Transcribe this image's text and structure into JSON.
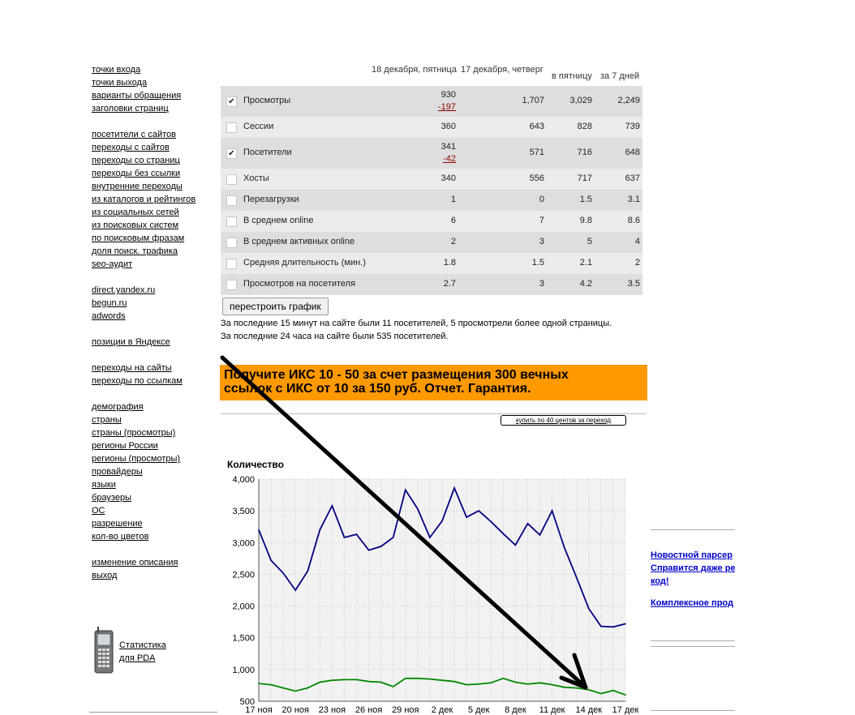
{
  "left_nav": {
    "groups": [
      [
        "точки входа",
        "точки выхода",
        "варианты обращения",
        "заголовки страниц"
      ],
      [
        "посетители с сайтов",
        "переходы с сайтов",
        "переходы со страниц",
        "переходы без ссылки",
        "внутренние переходы",
        "из каталогов и рейтингов",
        "из социальных сетей",
        "из поисковых систем",
        "по поисковым фразам",
        "доля поиск. трафика",
        "seo-аудит"
      ],
      [
        "direct.yandex.ru",
        "begun.ru",
        "adwords"
      ],
      [
        "позиции в Яндексе"
      ],
      [
        "переходы на сайты",
        "переходы по ссылкам"
      ],
      [
        "демография",
        "страны",
        "страны (просмотры)",
        "регионы России",
        "регионы (просмотры)",
        "провайдеры",
        "языки",
        "браузеры",
        "ОС",
        "разрешение",
        "кол-во цветов"
      ],
      [
        "изменение описания",
        "выход"
      ]
    ],
    "pda": {
      "line1": "Статистика",
      "line2": "для PDA"
    }
  },
  "stats_table": {
    "headers": {
      "col1": "18 декабря, пятница",
      "col2": "17 декабря, четверг",
      "col3": "в пятницу",
      "col4": "за 7 дней"
    },
    "rows": [
      {
        "label": "Просмотры",
        "checked": true,
        "v1": "930",
        "delta": "-197",
        "v2": "1,707",
        "v3": "3,029",
        "v4": "2,249"
      },
      {
        "label": "Сессии",
        "checked": false,
        "v1": "360",
        "delta": "",
        "v2": "643",
        "v3": "828",
        "v4": "739"
      },
      {
        "label": "Посетители",
        "checked": true,
        "v1": "341",
        "delta": "-42",
        "v2": "571",
        "v3": "716",
        "v4": "648"
      },
      {
        "label": "Хосты",
        "checked": false,
        "v1": "340",
        "delta": "",
        "v2": "556",
        "v3": "717",
        "v4": "637"
      },
      {
        "label": "Перезагрузки",
        "checked": false,
        "v1": "1",
        "delta": "",
        "v2": "0",
        "v3": "1.5",
        "v4": "3.1"
      },
      {
        "label": "В среднем online",
        "checked": false,
        "v1": "6",
        "delta": "",
        "v2": "7",
        "v3": "9.8",
        "v4": "8.6"
      },
      {
        "label": "В среднем активных online",
        "checked": false,
        "v1": "2",
        "delta": "",
        "v2": "3",
        "v3": "5",
        "v4": "4"
      },
      {
        "label": "Средняя длительность (мин.)",
        "checked": false,
        "v1": "1.8",
        "delta": "",
        "v2": "1.5",
        "v3": "2.1",
        "v4": "2"
      },
      {
        "label": "Просмотров на посетителя",
        "checked": false,
        "v1": "2.7",
        "delta": "",
        "v2": "3",
        "v3": "4.2",
        "v4": "3.5"
      }
    ],
    "rebuild_button": "перестроить график"
  },
  "info": {
    "line1": "За последние 15 минут на сайте были 11 посетителей, 5 просмотрели более одной страницы.",
    "line2": "За последние 24 часа на сайте были 535 посетителей."
  },
  "ad": {
    "line1": "Получите ИКС 10 - 50 за счет размещения 300 вечных",
    "line2": "ссылок с ИКС от 10 за 150 руб. Отчет. Гарантия.",
    "buy_link": "купить по 40 центов за переход"
  },
  "colors": {
    "series_views": "#000080",
    "series_visitors": "#008800",
    "banner": "#ff9900",
    "arrow": "#000000"
  },
  "chart_data": {
    "type": "line",
    "ylabel": "Количество",
    "ylim": [
      500,
      4000
    ],
    "yticks": [
      "500",
      "1,000",
      "1,500",
      "2,000",
      "2,500",
      "3,000",
      "3,500",
      "4,000"
    ],
    "ytick_values": [
      500,
      1000,
      1500,
      2000,
      2500,
      3000,
      3500,
      4000
    ],
    "x_tick_labels": [
      "17 ноя",
      "20 ноя",
      "23 ноя",
      "26 ноя",
      "29 ноя",
      "2 дек",
      "5 дек",
      "8 дек",
      "11 дек",
      "14 дек",
      "17 дек"
    ],
    "grid": true,
    "series": [
      {
        "color": "#000080",
        "values": [
          3200,
          2720,
          2520,
          2250,
          2550,
          3200,
          3580,
          3080,
          3130,
          2880,
          2940,
          3080,
          3830,
          3530,
          3080,
          3340,
          3860,
          3400,
          3500,
          3330,
          3140,
          2960,
          3300,
          3120,
          3500,
          2920,
          2450,
          1960,
          1680,
          1670,
          1720
        ]
      },
      {
        "color": "#008800",
        "values": [
          780,
          760,
          710,
          660,
          710,
          800,
          830,
          840,
          840,
          810,
          800,
          730,
          860,
          860,
          850,
          830,
          810,
          760,
          770,
          790,
          860,
          800,
          770,
          790,
          760,
          720,
          710,
          680,
          620,
          670,
          600
        ]
      }
    ]
  },
  "right_column": {
    "links": [
      "Новостной парсер",
      "Справится даже ре",
      "код!",
      "Комплексное прод"
    ]
  }
}
